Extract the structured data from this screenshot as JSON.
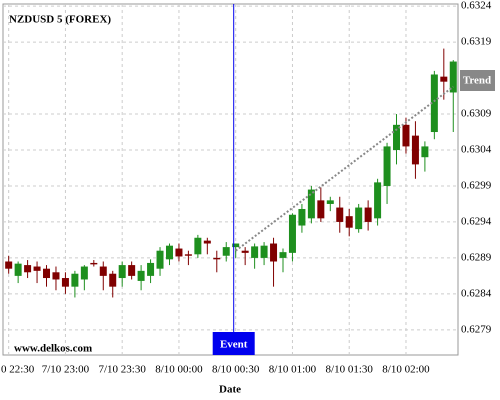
{
  "chart_data": {
    "type": "candlestick",
    "title": "NZDUSD 5 (FOREX)",
    "x_label": "Date",
    "watermark": "www.delkos.com",
    "categories": [
      "0 22:30",
      null,
      null,
      null,
      null,
      null,
      "7/10 23:00",
      null,
      null,
      null,
      null,
      null,
      "7/10 23:30",
      null,
      null,
      null,
      null,
      null,
      "8/10 00:00",
      null,
      null,
      null,
      null,
      null,
      "8/10 00:30",
      null,
      null,
      null,
      null,
      null,
      "8/10 01:00",
      null,
      null,
      null,
      null,
      null,
      "8/10 01:30",
      null,
      null,
      null,
      null,
      null,
      "8/10 02:00",
      null,
      null,
      null,
      null,
      null
    ],
    "open": [
      0.62885,
      0.62865,
      0.6288,
      0.62878,
      0.62875,
      0.6287,
      0.62862,
      0.6285,
      0.6286,
      0.62883,
      0.62878,
      0.62868,
      0.62862,
      0.6288,
      0.62858,
      0.62865,
      0.62875,
      0.62888,
      0.62903,
      0.62895,
      0.62895,
      0.62914,
      0.6289,
      0.62893,
      0.62905,
      0.629,
      0.6289,
      0.6289,
      0.6291,
      0.6289,
      0.62897,
      0.62935,
      0.62945,
      0.6297,
      0.62965,
      0.6296,
      0.62948,
      0.6293,
      0.6296,
      0.62945,
      0.6299,
      0.6304,
      0.63075,
      0.6306,
      0.6303,
      0.63065,
      0.63142,
      0.6312
    ],
    "high": [
      0.62893,
      0.62885,
      0.62887,
      0.62885,
      0.6288,
      0.62878,
      0.6287,
      0.62872,
      0.6288,
      0.62887,
      0.62885,
      0.62872,
      0.62885,
      0.62885,
      0.6288,
      0.62888,
      0.62905,
      0.6291,
      0.6291,
      0.629,
      0.62922,
      0.62918,
      0.629,
      0.62912,
      0.6291,
      0.62905,
      0.6291,
      0.62912,
      0.62918,
      0.62903,
      0.62952,
      0.62965,
      0.6299,
      0.62988,
      0.62975,
      0.62975,
      0.62958,
      0.62965,
      0.6297,
      0.63,
      0.6305,
      0.6309,
      0.63085,
      0.6308,
      0.63052,
      0.6315,
      0.63181,
      0.63165
    ],
    "low": [
      0.62868,
      0.62855,
      0.62862,
      0.62855,
      0.6285,
      0.62845,
      0.6284,
      0.62835,
      0.62845,
      0.62878,
      0.62845,
      0.62835,
      0.6285,
      0.6286,
      0.62845,
      0.62855,
      0.62865,
      0.6288,
      0.62885,
      0.6288,
      0.6289,
      0.62895,
      0.6287,
      0.62885,
      0.6289,
      0.6288,
      0.62875,
      0.6288,
      0.6285,
      0.6287,
      0.62885,
      0.62925,
      0.62938,
      0.6294,
      0.62955,
      0.62925,
      0.6292,
      0.62925,
      0.62928,
      0.62935,
      0.62965,
      0.6302,
      0.63035,
      0.63,
      0.6301,
      0.63055,
      0.6311,
      0.63065
    ],
    "close": [
      0.62875,
      0.62882,
      0.6287,
      0.62872,
      0.62862,
      0.6286,
      0.6285,
      0.62868,
      0.62878,
      0.62881,
      0.62865,
      0.6285,
      0.6288,
      0.62865,
      0.62872,
      0.62883,
      0.629,
      0.62907,
      0.62892,
      0.62893,
      0.62918,
      0.6291,
      0.62888,
      0.62905,
      0.6291,
      0.62897,
      0.62906,
      0.62907,
      0.62885,
      0.62898,
      0.6295,
      0.62958,
      0.62985,
      0.62945,
      0.6297,
      0.6294,
      0.62932,
      0.6296,
      0.6294,
      0.62995,
      0.63045,
      0.63075,
      0.63045,
      0.6302,
      0.63045,
      0.63145,
      0.63135,
      0.63163
    ],
    "up_color": "#1e8f1e",
    "down_color": "#800000",
    "ylim": [
      0.62755,
      0.63243
    ],
    "yticks": [
      0.6279,
      0.6284,
      0.6289,
      0.6294,
      0.6299,
      0.6304,
      0.6309,
      0.6319,
      0.6324
    ],
    "grid": true,
    "event": {
      "label": "Event",
      "x": "8/10 00:30",
      "color": "#0000ee"
    },
    "trend": {
      "label": "Trend",
      "start_x": "8/10 00:30",
      "start": 0.629,
      "end": 0.63128,
      "color": "#888888"
    }
  }
}
